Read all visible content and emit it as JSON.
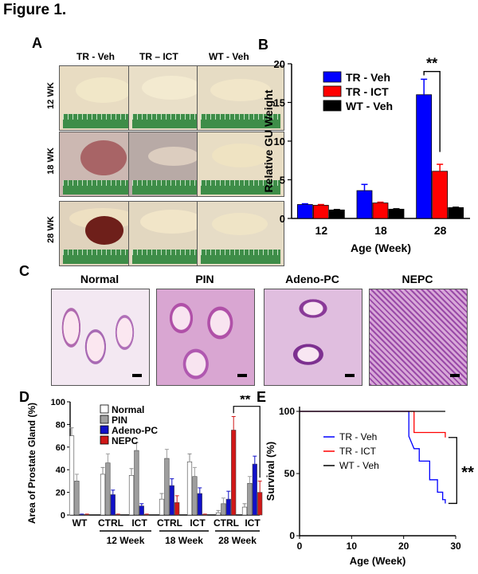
{
  "figure_title": "Figure 1.",
  "panels": {
    "A": "A",
    "B": "B",
    "C": "C",
    "D": "D",
    "E": "E"
  },
  "panel_a": {
    "columns": [
      "TR - Veh",
      "TR – ICT",
      "WT - Veh"
    ],
    "rows": [
      "12 WK",
      "18 WK",
      "28 WK"
    ]
  },
  "panel_c": {
    "labels": [
      "Normal",
      "PIN",
      "Adeno-PC",
      "NEPC"
    ]
  },
  "chart_data": [
    {
      "panel": "B",
      "type": "bar",
      "categories": [
        "12",
        "18",
        "28"
      ],
      "series": [
        {
          "name": "TR - Veh",
          "values": [
            1.8,
            3.6,
            16.0
          ],
          "errors": [
            0.1,
            0.8,
            2.0
          ],
          "color": "#0000ff"
        },
        {
          "name": "TR - ICT",
          "values": [
            1.7,
            2.0,
            6.1
          ],
          "errors": [
            0.1,
            0.1,
            0.9
          ],
          "color": "#ff0000"
        },
        {
          "name": "WT - Veh",
          "values": [
            1.1,
            1.2,
            1.4
          ],
          "errors": [
            0.05,
            0.05,
            0.05
          ],
          "color": "#000000"
        }
      ],
      "xlabel": "Age (Week)",
      "ylabel": "Relative GU Weight",
      "ylim": [
        0,
        20
      ],
      "yticks": [
        "0",
        "5",
        "10",
        "15",
        "20"
      ],
      "annotation": "**",
      "legend": "top-left"
    },
    {
      "panel": "D",
      "type": "bar",
      "groups": [
        {
          "label": "WT",
          "values": [
            70,
            30,
            0.5,
            0.5
          ],
          "errors": [
            7,
            6,
            0.3,
            0.3
          ]
        },
        {
          "label": "CTRL",
          "values": [
            36,
            46,
            18,
            0.5
          ],
          "errors": [
            6,
            8,
            4,
            0.3
          ]
        },
        {
          "label": "ICT",
          "values": [
            35,
            57,
            8,
            0.5
          ],
          "errors": [
            6,
            7,
            2,
            0.3
          ]
        },
        {
          "label": "CTRL",
          "values": [
            14,
            50,
            26,
            11
          ],
          "errors": [
            5,
            8,
            6,
            6
          ]
        },
        {
          "label": "ICT",
          "values": [
            47,
            34,
            19,
            0.5
          ],
          "errors": [
            7,
            8,
            5,
            0.3
          ]
        },
        {
          "label": "CTRL",
          "values": [
            2,
            10,
            14,
            75
          ],
          "errors": [
            2,
            5,
            7,
            12
          ]
        },
        {
          "label": "ICT",
          "values": [
            7,
            28,
            45,
            20
          ],
          "errors": [
            3,
            6,
            7,
            10
          ]
        }
      ],
      "week_labels": [
        "12 Week",
        "18 Week",
        "28 Week"
      ],
      "series_names": [
        "Normal",
        "PIN",
        "Adeno-PC",
        "NEPC"
      ],
      "colors": [
        "#ffffff",
        "#9e9e9e",
        "#1010c8",
        "#d01818"
      ],
      "ylabel": "Area of Prostate Gland (%)",
      "ylim": [
        0,
        100
      ],
      "yticks": [
        "0",
        "20",
        "40",
        "60",
        "80",
        "100"
      ],
      "annotation": "**",
      "legend": "top-center"
    },
    {
      "panel": "E",
      "type": "line",
      "series": [
        {
          "name": "TR - Veh",
          "color": "#0000ff",
          "points": [
            [
              0,
              100
            ],
            [
              21,
              100
            ],
            [
              21,
              80
            ],
            [
              22,
              70
            ],
            [
              23,
              70
            ],
            [
              23,
              60
            ],
            [
              24,
              60
            ],
            [
              24,
              60
            ],
            [
              25,
              60
            ],
            [
              25,
              45
            ],
            [
              26.5,
              45
            ],
            [
              26.5,
              35
            ],
            [
              27.5,
              35
            ],
            [
              27.5,
              29
            ],
            [
              28,
              29
            ],
            [
              28,
              26
            ]
          ]
        },
        {
          "name": "TR - ICT",
          "color": "#ff0000",
          "points": [
            [
              0,
              100
            ],
            [
              22,
              100
            ],
            [
              22,
              83
            ],
            [
              28,
              83
            ],
            [
              28,
              79
            ]
          ]
        },
        {
          "name": "WT - Veh",
          "color": "#000000",
          "points": [
            [
              0,
              100
            ],
            [
              28,
              100
            ]
          ]
        }
      ],
      "xlabel": "Age (Week)",
      "ylabel": "Survival (%)",
      "xlim": [
        0,
        30
      ],
      "ylim": [
        0,
        100
      ],
      "xticks": [
        "0",
        "10",
        "20",
        "30"
      ],
      "yticks": [
        "0",
        "50",
        "100"
      ],
      "annotation": "**",
      "legend": "top-left"
    }
  ]
}
